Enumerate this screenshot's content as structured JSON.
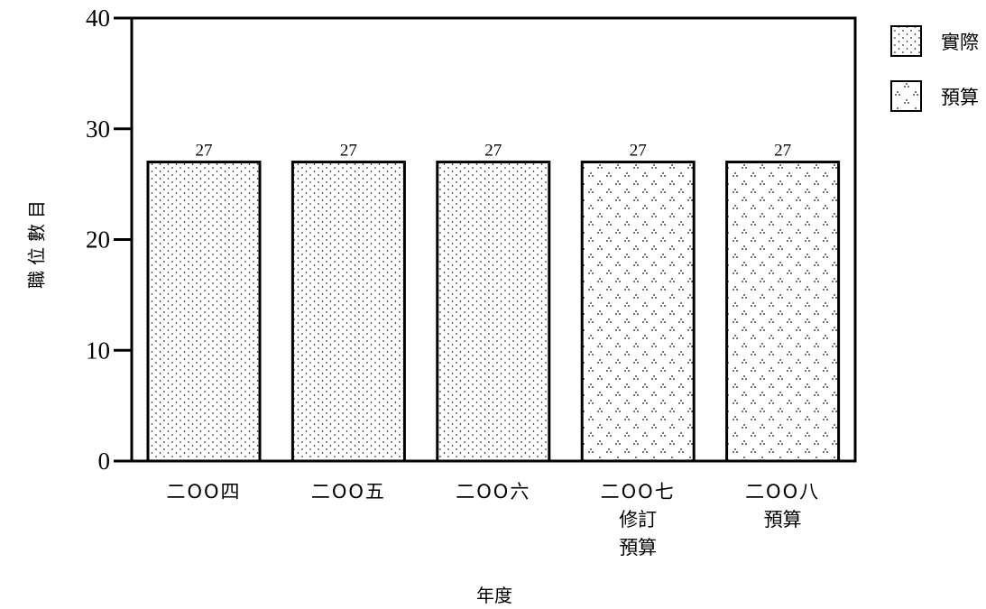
{
  "chart_data": {
    "type": "bar",
    "xlabel": "年度",
    "ylabel": "職位數目",
    "ylim": [
      0,
      40
    ],
    "yticks": [
      0,
      10,
      20,
      30,
      40
    ],
    "grid": false,
    "legend_position": "top-right",
    "legend": [
      {
        "label": "實際",
        "pattern": "fine-dots"
      },
      {
        "label": "預算",
        "pattern": "triangle-dots"
      }
    ],
    "categories": [
      {
        "lines": [
          "二OO四"
        ],
        "value": 27,
        "label": "27",
        "series": "實際"
      },
      {
        "lines": [
          "二OO五"
        ],
        "value": 27,
        "label": "27",
        "series": "實際"
      },
      {
        "lines": [
          "二OO六"
        ],
        "value": 27,
        "label": "27",
        "series": "實際"
      },
      {
        "lines": [
          "二OO七",
          "修訂",
          "預算"
        ],
        "value": 27,
        "label": "27",
        "series": "預算"
      },
      {
        "lines": [
          "二OO八",
          "預算"
        ],
        "value": 27,
        "label": "27",
        "series": "預算"
      }
    ]
  }
}
